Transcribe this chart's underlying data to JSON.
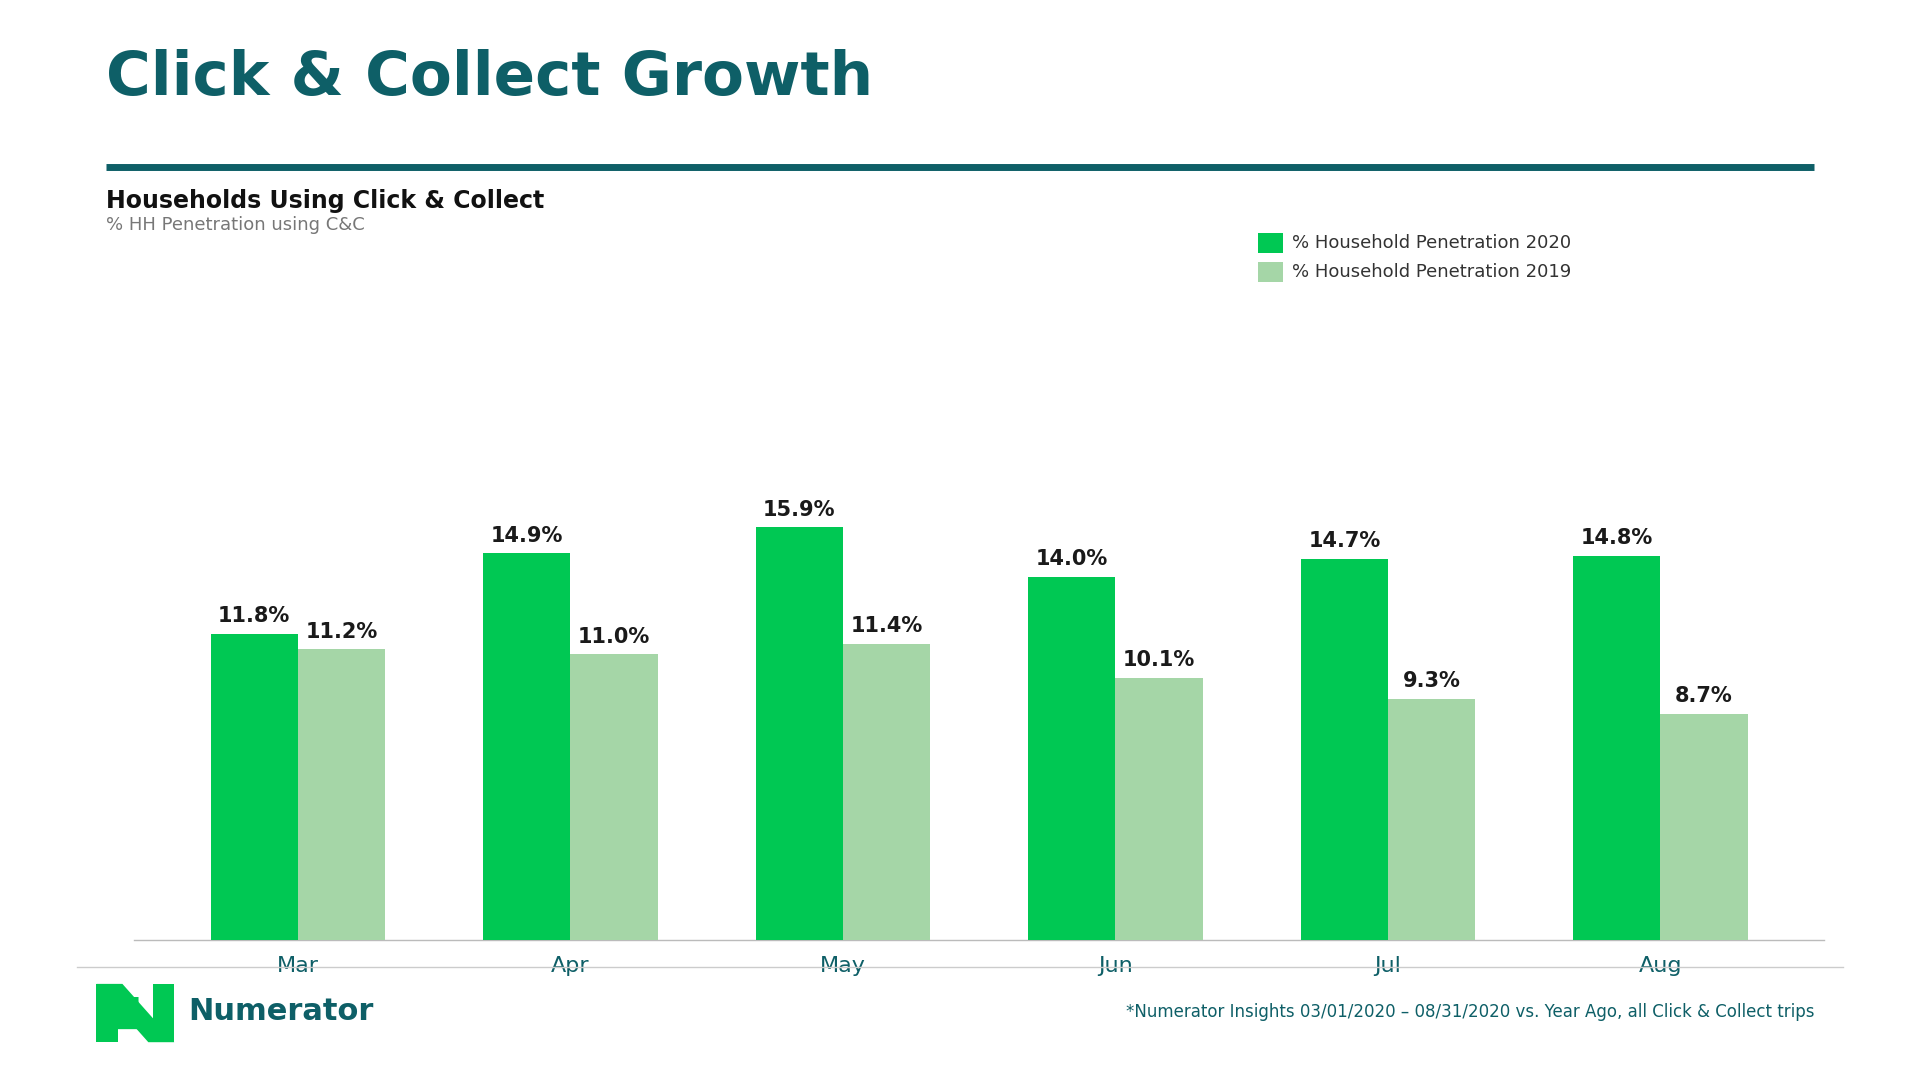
{
  "title": "Click & Collect Growth",
  "subtitle": "Households Using Click & Collect",
  "subtitle2": "% HH Penetration using C&C",
  "categories": [
    "Mar",
    "Apr",
    "May",
    "Jun",
    "Jul",
    "Aug"
  ],
  "values_2020": [
    11.8,
    14.9,
    15.9,
    14.0,
    14.7,
    14.8
  ],
  "values_2019": [
    11.2,
    11.0,
    11.4,
    10.1,
    9.3,
    8.7
  ],
  "color_2020": "#00C853",
  "color_2019": "#A5D6A7",
  "legend_label_2020": "% Household Penetration 2020",
  "legend_label_2019": "% Household Penetration 2019",
  "teal_color": "#0E5F67",
  "footer_text": "*Numerator Insights 03/01/2020 – 08/31/2020 vs. Year Ago, all Click & Collect trips",
  "bg_color": "#FFFFFF",
  "bar_width": 0.32,
  "ylim": [
    0,
    20
  ]
}
